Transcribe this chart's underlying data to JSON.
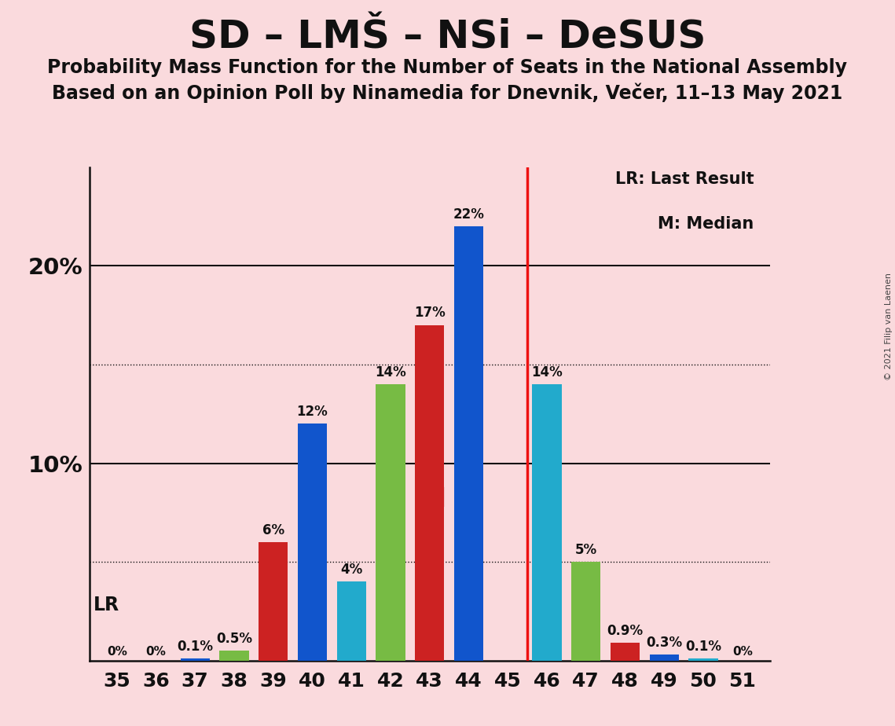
{
  "title": "SD – LMŠ – NSi – DeSUS",
  "subtitle1": "Probability Mass Function for the Number of Seats in the National Assembly",
  "subtitle2": "Based on an Opinion Poll by Ninamedia for Dnevnik, Večer, 11–13 May 2021",
  "copyright": "© 2021 Filip van Laenen",
  "seats": [
    35,
    36,
    37,
    38,
    39,
    40,
    41,
    42,
    43,
    44,
    45,
    46,
    47,
    48,
    49,
    50,
    51
  ],
  "values": [
    0.0,
    0.0,
    0.1,
    0.5,
    6.0,
    12.0,
    4.0,
    14.0,
    17.0,
    22.0,
    0.0,
    14.0,
    5.0,
    0.9,
    0.3,
    0.1,
    0.0
  ],
  "labels": [
    "0%",
    "0%",
    "0.1%",
    "0.5%",
    "6%",
    "12%",
    "4%",
    "14%",
    "17%",
    "22%",
    "",
    "14%",
    "5%",
    "0.9%",
    "0.3%",
    "0.1%",
    "0%"
  ],
  "colors": [
    "#77bb44",
    "#cc2222",
    "#1155cc",
    "#77bb44",
    "#cc2222",
    "#1155cc",
    "#22aacc",
    "#77bb44",
    "#cc2222",
    "#1155cc",
    "#cc2222",
    "#22aacc",
    "#77bb44",
    "#cc2222",
    "#1155cc",
    "#22aacc",
    "#77bb44"
  ],
  "lr_seat": 45,
  "median_seat": 43,
  "median_label": "M",
  "lr_label": "LR",
  "legend_lr": "LR: Last Result",
  "legend_m": "M: Median",
  "lr_line_color": "#ee1111",
  "background_color": "#fadadd",
  "grid_major_color": "#111111",
  "grid_minor_color": "#111111",
  "dotted_levels": [
    5.0,
    15.0
  ],
  "ylim": [
    0,
    25
  ],
  "title_fontsize": 36,
  "subtitle_fontsize": 17
}
